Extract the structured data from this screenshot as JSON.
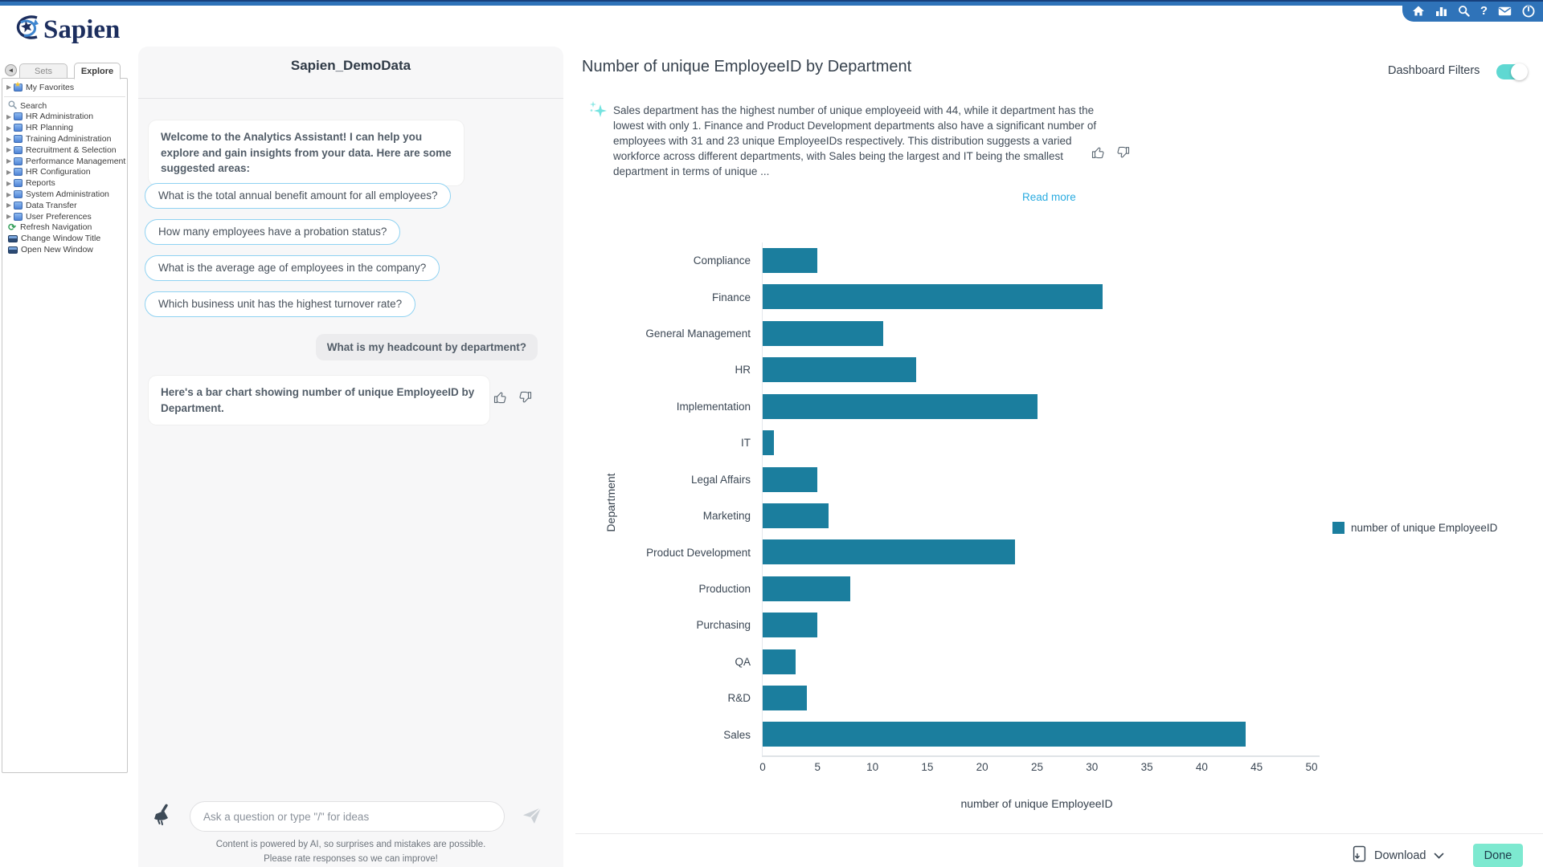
{
  "topbar": {
    "icons": [
      "home",
      "bar-chart",
      "search",
      "help",
      "mail",
      "power"
    ],
    "help_glyph": "?"
  },
  "logo": {
    "text": "Sapien"
  },
  "sidebar": {
    "tabs": [
      {
        "label": "Sets",
        "active": false
      },
      {
        "label": "Explore",
        "active": true
      }
    ],
    "favorites_label": "My Favorites",
    "search_label": "Search",
    "folders": [
      "HR Administration",
      "HR Planning",
      "Training Administration",
      "Recruitment & Selection",
      "Performance Management",
      "HR Configuration",
      "Reports",
      "System Administration",
      "Data Transfer",
      "User Preferences"
    ],
    "actions": [
      {
        "label": "Refresh Navigation",
        "icon": "refresh-icon"
      },
      {
        "label": "Change Window Title",
        "icon": "window-icon"
      },
      {
        "label": "Open New Window",
        "icon": "window-icon"
      }
    ]
  },
  "chat": {
    "title": "Sapien_DemoData",
    "welcome": "Welcome to the Analytics Assistant! I can help you explore and gain insights from your data. Here are some suggested areas:",
    "suggestions": [
      "What is the total annual benefit amount for all employees?",
      "How many employees have a probation status?",
      "What is the average age of employees in the company?",
      "Which business unit has the highest turnover rate?"
    ],
    "user_message": "What is my headcount by department?",
    "assistant_message": "Here's a bar chart showing number of unique EmployeeID by Department.",
    "input_placeholder": "Ask a question or type \"/\" for ideas",
    "footer_line1": "Content is powered by AI, so surprises and mistakes are possible.",
    "footer_line2": "Please rate responses so we can improve!"
  },
  "main": {
    "title": "Number of unique EmployeeID by Department",
    "dashboard_filters_label": "Dashboard Filters",
    "dashboard_filters_on": true,
    "summary": "Sales department has the highest number of unique employeeid with 44, while it department has the lowest with only 1. Finance and Product Development departments also have a significant number of employees with 31 and 23 unique EmployeeIDs respectively. This distribution suggests a varied workforce across different departments, with Sales being the largest and IT being the smallest department in terms of unique ...",
    "read_more_label": "Read more",
    "download_label": "Download",
    "done_label": "Done"
  },
  "chart_data": {
    "type": "bar",
    "orientation": "horizontal",
    "title": "Number of unique EmployeeID by Department",
    "categories": [
      "Compliance",
      "Finance",
      "General Management",
      "HR",
      "Implementation",
      "IT",
      "Legal Affairs",
      "Marketing",
      "Product Development",
      "Production",
      "Purchasing",
      "QA",
      "R&D",
      "Sales"
    ],
    "values": [
      5,
      31,
      11,
      14,
      25,
      1,
      5,
      6,
      23,
      8,
      5,
      3,
      4,
      44
    ],
    "xlabel": "number of unique EmployeeID",
    "ylabel": "Department",
    "xlim": [
      0,
      50
    ],
    "xticks": [
      0,
      5,
      10,
      15,
      20,
      25,
      30,
      35,
      40,
      45,
      50
    ],
    "legend": [
      "number of unique EmployeeID"
    ],
    "legend_position": "right",
    "bar_color": "#1b7e9e",
    "grid": false
  },
  "colors": {
    "topbar_blue": "#2f73b9",
    "accent_teal": "#5fd8d2",
    "done_mint": "#7de9d0",
    "chip_border": "#8fd2f2",
    "link_blue": "#29abe0",
    "bar_teal": "#1b7e9e"
  }
}
